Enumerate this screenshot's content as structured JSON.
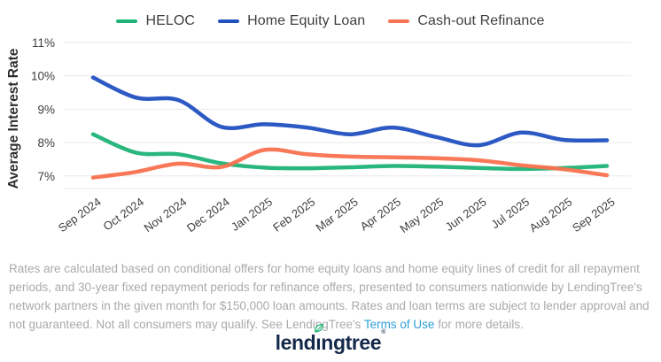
{
  "chart_data": {
    "type": "line",
    "title": "",
    "ylabel": "Average Interest Rate",
    "xlabel": "",
    "grid": true,
    "legend_position": "top",
    "ylim": [
      6.6,
      11
    ],
    "yticks": [
      {
        "value": 11,
        "label": "11%"
      },
      {
        "value": 10,
        "label": "10%"
      },
      {
        "value": 9,
        "label": "9%"
      },
      {
        "value": 8,
        "label": "8%"
      },
      {
        "value": 7,
        "label": "7%"
      }
    ],
    "x": [
      "Sep 2024",
      "Oct 2024",
      "Nov 2024",
      "Dec 2024",
      "Jan 2025",
      "Feb 2025",
      "Mar 2025",
      "Apr 2025",
      "May 2025",
      "Jun 2025",
      "Jul 2025",
      "Aug 2025",
      "Sep 2025"
    ],
    "series": [
      {
        "name": "HELOC",
        "color": "#1eb377",
        "values": [
          8.25,
          7.7,
          7.65,
          7.38,
          7.25,
          7.23,
          7.26,
          7.3,
          7.28,
          7.24,
          7.21,
          7.24,
          7.3
        ]
      },
      {
        "name": "Home Equity Loan",
        "color": "#2150c0",
        "values": [
          9.95,
          9.35,
          9.27,
          8.47,
          8.55,
          8.45,
          8.25,
          8.45,
          8.17,
          7.92,
          8.3,
          8.08,
          8.07
        ]
      },
      {
        "name": "Cash-out Refinance",
        "color": "#f9714f",
        "values": [
          6.95,
          7.12,
          7.37,
          7.27,
          7.78,
          7.65,
          7.58,
          7.56,
          7.53,
          7.47,
          7.32,
          7.2,
          7.02
        ]
      }
    ],
    "grid_color": "#e9e9e9",
    "tick_color": "#3e3e3e",
    "axis_title_color": "#2e2e2e"
  },
  "disclaimer": {
    "text_before": "Rates are calculated based on conditional offers for home equity loans and home equity lines of credit for all repayment periods, and 30-year fixed repayment periods for refinance offers, presented to consumers nationwide by LendingTree's network partners in the given month for $150,000 loan amounts. Rates and loan terms are subject to lender approval and not guaranteed. Not all consumers may qualify. See LendingTree's ",
    "link_text": "Terms of Use",
    "text_after": " for more details."
  },
  "logo": {
    "text_before": "lend",
    "text_i": "ı",
    "text_after": "ngtree",
    "mark": "®",
    "navy": "#15294b",
    "leaf_green": "#22b573"
  }
}
